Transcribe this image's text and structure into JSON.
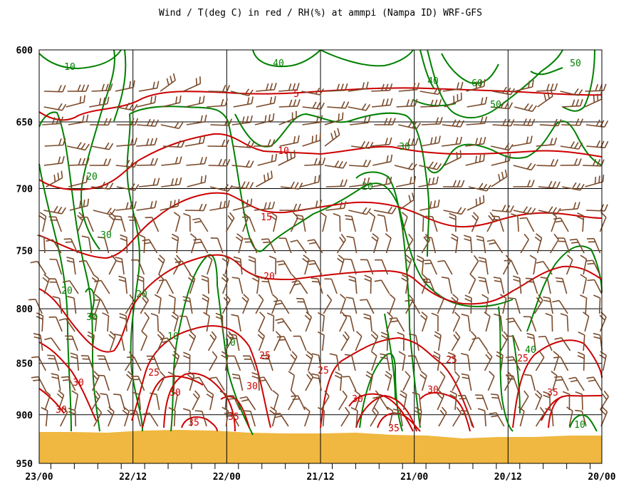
{
  "chart_data": {
    "type": "line",
    "title": "Wind / T(deg C) in red / RH(%) at ammpi (Nampa ID)  WRF-GFS",
    "y_axis": {
      "label": "",
      "range": [
        600,
        950
      ],
      "ticks": [
        "600",
        "650",
        "700",
        "750",
        "800",
        "850",
        "900",
        "950"
      ],
      "inverted": true
    },
    "x_axis": {
      "label": "",
      "ticks": [
        "23/00",
        "22/12",
        "22/00",
        "21/12",
        "21/00",
        "20/12",
        "20/00"
      ]
    },
    "grid": true,
    "colors": {
      "temperature": "#cc0000",
      "rh": "#008000",
      "wind": "#7a4a2a",
      "terrain": "#f0b840"
    },
    "temperature_labels": [
      "5",
      "10",
      "15",
      "20",
      "25",
      "25",
      "25",
      "25",
      "25",
      "30",
      "30",
      "30",
      "30",
      "30",
      "30",
      "35",
      "35",
      "35",
      "35"
    ],
    "rh_labels": [
      "10",
      "10",
      "10",
      "10",
      "20",
      "20",
      "20",
      "20",
      "30",
      "30",
      "30",
      "40",
      "40",
      "40",
      "50",
      "50",
      "60"
    ]
  }
}
